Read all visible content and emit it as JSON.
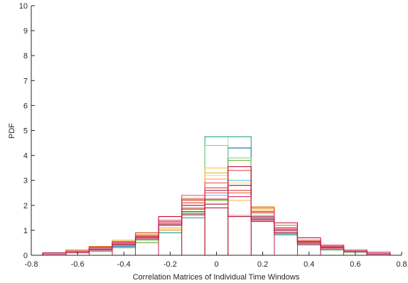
{
  "chart_data": {
    "type": "histogram",
    "title": "",
    "xlabel": "Correlation Matrices of Individual Time Windows",
    "ylabel": "PDF",
    "xlim": [
      -0.8,
      0.8
    ],
    "ylim": [
      0,
      10
    ],
    "xticks": [
      "-0.8",
      "-0.6",
      "-0.4",
      "-0.2",
      "0",
      "0.2",
      "0.4",
      "0.6",
      "0.8"
    ],
    "yticks": [
      "0",
      "1",
      "2",
      "3",
      "4",
      "5",
      "6",
      "7",
      "8",
      "9",
      "10"
    ],
    "grid": false,
    "legend": "none",
    "bin_edges": [
      -0.75,
      -0.65,
      -0.55,
      -0.45,
      -0.35,
      -0.25,
      -0.15,
      -0.05,
      0.05,
      0.15,
      0.25,
      0.35,
      0.45,
      0.55,
      0.65,
      0.75
    ],
    "series": [
      {
        "color": "#0072BD",
        "values": [
          0.05,
          0.1,
          0.2,
          0.35,
          0.6,
          1.0,
          1.75,
          2.6,
          4.3,
          1.5,
          0.85,
          0.45,
          0.2,
          0.1,
          0.05
        ]
      },
      {
        "color": "#4DBEEE",
        "values": [
          0.1,
          0.15,
          0.3,
          0.5,
          0.7,
          1.2,
          1.9,
          2.4,
          3.0,
          1.6,
          0.9,
          0.5,
          0.2,
          0.1,
          0.05
        ]
      },
      {
        "color": "#77AC30",
        "values": [
          0.05,
          0.1,
          0.15,
          0.3,
          0.5,
          0.9,
          1.6,
          2.2,
          3.8,
          1.7,
          0.9,
          0.4,
          0.2,
          0.1,
          0.05
        ]
      },
      {
        "color": "#2CA58D",
        "values": [
          0.05,
          0.1,
          0.2,
          0.4,
          0.6,
          0.9,
          1.5,
          4.75,
          4.75,
          1.5,
          0.8,
          0.4,
          0.2,
          0.1,
          0.05
        ]
      },
      {
        "color": "#90D088",
        "values": [
          0.05,
          0.1,
          0.2,
          0.4,
          0.6,
          1.0,
          1.7,
          4.4,
          3.9,
          1.6,
          0.8,
          0.4,
          0.2,
          0.1,
          0.05
        ]
      },
      {
        "color": "#EDB120",
        "values": [
          0.1,
          0.2,
          0.35,
          0.6,
          0.9,
          1.1,
          1.9,
          3.3,
          2.6,
          1.7,
          1.0,
          0.55,
          0.3,
          0.15,
          0.1
        ]
      },
      {
        "color": "#F5D76E",
        "values": [
          0.1,
          0.15,
          0.3,
          0.55,
          0.85,
          1.05,
          2.3,
          3.2,
          2.9,
          1.85,
          1.1,
          0.6,
          0.3,
          0.2,
          0.1
        ]
      },
      {
        "color": "#FFC04D",
        "values": [
          0.05,
          0.15,
          0.25,
          0.45,
          0.75,
          1.1,
          2.1,
          3.5,
          2.2,
          1.8,
          0.95,
          0.5,
          0.25,
          0.15,
          0.1
        ]
      },
      {
        "color": "#F4A460",
        "values": [
          0.1,
          0.2,
          0.3,
          0.5,
          0.8,
          1.0,
          2.0,
          3.05,
          1.6,
          1.95,
          1.1,
          0.6,
          0.3,
          0.2,
          0.15
        ]
      },
      {
        "color": "#D95319",
        "values": [
          0.1,
          0.2,
          0.35,
          0.55,
          0.9,
          1.2,
          2.2,
          2.7,
          2.5,
          1.9,
          1.2,
          0.6,
          0.35,
          0.2,
          0.1
        ]
      },
      {
        "color": "#E8505B",
        "values": [
          0.1,
          0.15,
          0.3,
          0.5,
          0.8,
          1.4,
          2.4,
          2.9,
          3.4,
          1.7,
          1.0,
          0.55,
          0.35,
          0.2,
          0.1
        ]
      },
      {
        "color": "#E0446E",
        "values": [
          0.05,
          0.1,
          0.25,
          0.45,
          0.7,
          1.3,
          2.1,
          2.5,
          2.6,
          1.75,
          1.05,
          0.5,
          0.3,
          0.15,
          0.05
        ]
      },
      {
        "color": "#C8102E",
        "values": [
          0.1,
          0.15,
          0.3,
          0.5,
          0.75,
          1.55,
          2.0,
          2.25,
          3.55,
          1.4,
          1.3,
          0.7,
          0.4,
          0.2,
          0.1
        ]
      },
      {
        "color": "#A2142F",
        "values": [
          0.1,
          0.1,
          0.25,
          0.45,
          0.65,
          1.25,
          1.85,
          2.05,
          2.8,
          1.45,
          1.0,
          0.55,
          0.3,
          0.15,
          0.1
        ]
      },
      {
        "color": "#D62D73",
        "values": [
          0.05,
          0.15,
          0.3,
          0.5,
          0.8,
          1.35,
          2.25,
          2.6,
          2.35,
          1.55,
          1.1,
          0.5,
          0.35,
          0.2,
          0.1
        ]
      },
      {
        "color": "#B5174E",
        "values": [
          0.1,
          0.1,
          0.2,
          0.4,
          0.7,
          1.2,
          1.65,
          1.9,
          1.55,
          1.35,
          0.9,
          0.45,
          0.25,
          0.15,
          0.05
        ]
      }
    ]
  }
}
